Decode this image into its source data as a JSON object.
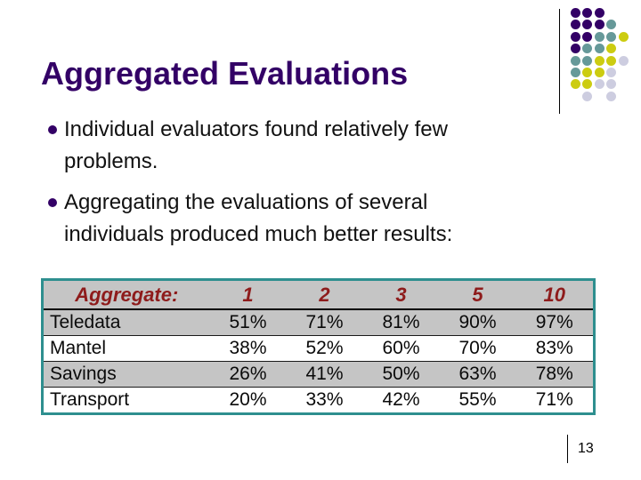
{
  "slide": {
    "title": "Aggregated Evaluations",
    "page_number": "13"
  },
  "bullets": [
    {
      "text": "Individual evaluators found relatively few\nproblems."
    },
    {
      "text": "Aggregating the evaluations of several\nindividuals produced much better results:"
    }
  ],
  "table": {
    "header": {
      "label": "Aggregate:",
      "columns": [
        "1",
        "2",
        "3",
        "5",
        "10"
      ]
    },
    "rows": [
      {
        "label": "Teledata",
        "values": [
          "51%",
          "71%",
          "81%",
          "90%",
          "97%"
        ]
      },
      {
        "label": "Mantel",
        "values": [
          "38%",
          "52%",
          "60%",
          "70%",
          "83%"
        ]
      },
      {
        "label": "Savings",
        "values": [
          "26%",
          "41%",
          "50%",
          "63%",
          "78%"
        ]
      },
      {
        "label": "Transport",
        "values": [
          "20%",
          "33%",
          "42%",
          "55%",
          "71%"
        ]
      }
    ]
  },
  "decoration": {
    "rows": [
      [
        "purple",
        "purple",
        "purple",
        null,
        null
      ],
      [
        "purple",
        "purple",
        "purple",
        "teal",
        null
      ],
      [
        "purple",
        "purple",
        "teal",
        "teal",
        "yellow"
      ],
      [
        "purple",
        "teal",
        "teal",
        "yellow",
        null
      ],
      [
        "teal",
        "teal",
        "yellow",
        "yellow",
        "lavender"
      ],
      [
        "teal",
        "yellow",
        "yellow",
        "lavender",
        null
      ],
      [
        "yellow",
        "yellow",
        "lavender",
        "lavender",
        null
      ],
      [
        null,
        "lavender",
        null,
        "lavender",
        null
      ]
    ],
    "dot_colors": {
      "purple": "#330066",
      "teal": "#669999",
      "yellow": "#CCCC11",
      "lavender": "#CDCDE0"
    }
  },
  "colors": {
    "title_text": "#330066",
    "bullet_marker": "#330066",
    "table_border_teal": "#2E8F8F",
    "table_header_red": "#8E1B1B",
    "row_gray": "#C5C5C5",
    "row_white": "#FFFFFF"
  }
}
